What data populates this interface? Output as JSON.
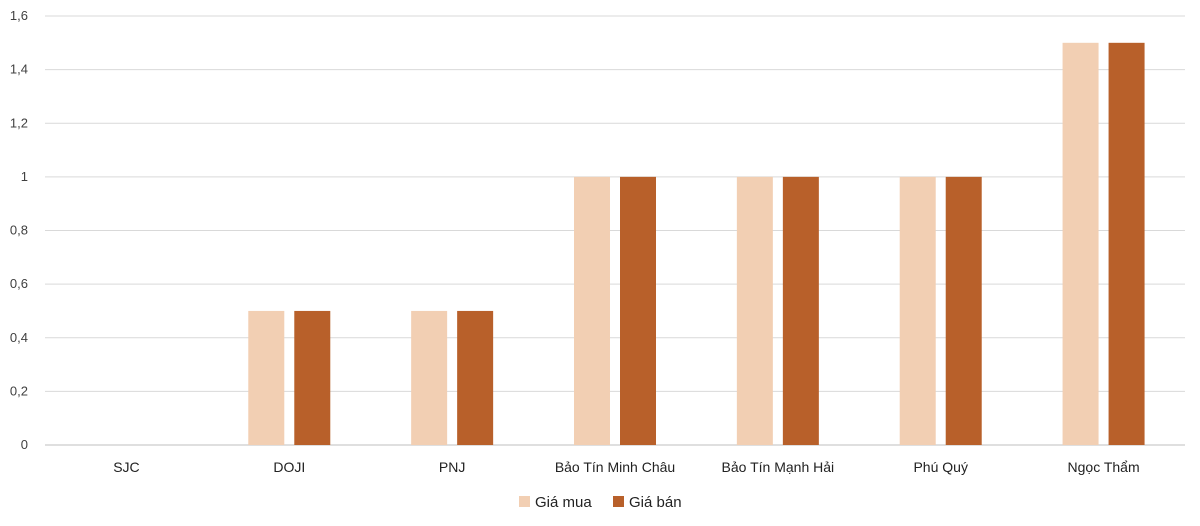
{
  "chart_data": {
    "type": "bar",
    "title": "",
    "xlabel": "",
    "ylabel": "",
    "categories": [
      "SJC",
      "DOJI",
      "PNJ",
      "Bảo Tín Minh Châu",
      "Bảo Tín Mạnh Hải",
      "Phú Quý",
      "Ngọc Thẩm"
    ],
    "series": [
      {
        "name": "Giá mua",
        "values": [
          0,
          0.5,
          0.5,
          1,
          1,
          1,
          1.5
        ],
        "color": "#f2cfb3"
      },
      {
        "name": "Giá bán",
        "values": [
          0,
          0.5,
          0.5,
          1,
          1,
          1,
          1.5
        ],
        "color": "#b8602a"
      }
    ],
    "ylim": [
      0,
      1.6
    ],
    "yticks": [
      "0",
      "0,2",
      "0,4",
      "0,6",
      "0,8",
      "1",
      "1,2",
      "1,4",
      "1,6"
    ],
    "grid": true,
    "legend_position": "bottom-center"
  }
}
